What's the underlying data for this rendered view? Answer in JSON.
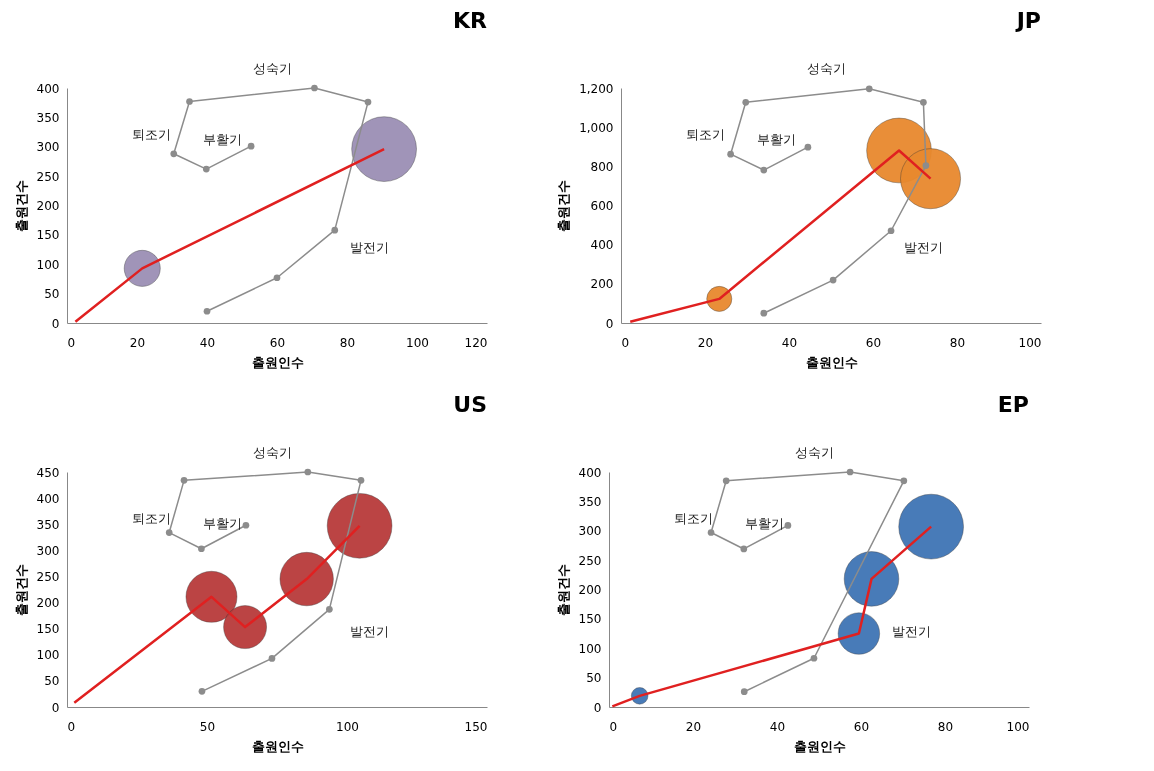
{
  "chart_data": [
    {
      "type": "bubble",
      "title": "KR",
      "xlabel": "출원인수",
      "ylabel": "출원건수",
      "xlim": [
        0,
        120
      ],
      "xticks": [
        0,
        20,
        40,
        60,
        80,
        100,
        120
      ],
      "ylim": [
        0,
        400
      ],
      "yticks": [
        0,
        50,
        100,
        150,
        200,
        250,
        300,
        350,
        400
      ],
      "grid": false,
      "legend": false,
      "series": [
        {
          "type": "bubble",
          "color": "#9b8fb5",
          "x": [
            21.5,
            90.6
          ],
          "values": [
            93,
            296
          ],
          "sizes": [
            0.31,
            1
          ]
        },
        {
          "type": "line",
          "color": "#8c8c8c",
          "marker": "circle",
          "x": [
            40,
            60,
            76.5,
            86,
            70.7,
            35,
            30.5,
            39.8,
            52.6
          ],
          "values": [
            20,
            77,
            158,
            376,
            400,
            377,
            288,
            262,
            301
          ]
        },
        {
          "type": "line",
          "color": "#e02020",
          "marker": "none",
          "x": [
            2.4,
            21.5,
            90.6
          ],
          "values": [
            2,
            93,
            296
          ]
        }
      ],
      "annotations": [
        "성숙기",
        "퇴조기",
        "부활기",
        "발전기"
      ]
    },
    {
      "type": "bubble",
      "title": "JP",
      "xlabel": "출원인수",
      "ylabel": "출원건수",
      "xlim": [
        0,
        100
      ],
      "xticks": [
        0,
        20,
        40,
        60,
        80,
        100
      ],
      "ylim": [
        0,
        1200
      ],
      "yticks": [
        0,
        200,
        400,
        600,
        800,
        {
          "value": 1000,
          "label": "1,000"
        },
        {
          "value": 1200,
          "label": "1,200"
        }
      ],
      "grid": false,
      "legend": false,
      "series": [
        {
          "type": "bubble",
          "color": "#e8892e",
          "x": [
            23.4,
            66.2,
            73.7
          ],
          "values": [
            123,
            881,
            737
          ],
          "sizes": [
            0.15,
            1,
            0.86
          ]
        },
        {
          "type": "line",
          "color": "#8c8c8c",
          "marker": "circle",
          "x": [
            34,
            50.5,
            64.3,
            72.6,
            72,
            59.1,
            29.7,
            26.1,
            34,
            44.5
          ],
          "values": [
            50,
            219,
            471,
            804,
            1127,
            1196,
            1127,
            862,
            781,
            898
          ]
        },
        {
          "type": "line",
          "color": "#e02020",
          "marker": "none",
          "x": [
            2.2,
            23.4,
            66.2,
            73.7
          ],
          "values": [
            6,
            123,
            881,
            737
          ]
        }
      ],
      "annotations": [
        "성숙기",
        "퇴조기",
        "부활기",
        "발전기"
      ]
    },
    {
      "type": "bubble",
      "title": "US",
      "xlabel": "출원인수",
      "ylabel": "출원건수",
      "xlim": [
        0,
        150
      ],
      "xticks": [
        0,
        50,
        100,
        150
      ],
      "ylim": [
        0,
        450
      ],
      "yticks": [
        0,
        50,
        100,
        150,
        200,
        250,
        300,
        350,
        400,
        450
      ],
      "grid": false,
      "legend": false,
      "series": [
        {
          "type": "bubble",
          "color": "#b83a3a",
          "x": [
            51.6,
            63.6,
            85.6,
            104.5
          ],
          "values": [
            211,
            153,
            245,
            347
          ],
          "sizes": [
            0.62,
            0.44,
            0.68,
            1
          ]
        },
        {
          "type": "line",
          "color": "#8c8c8c",
          "marker": "circle",
          "x": [
            48.2,
            73.2,
            93.7,
            105,
            86,
            41.8,
            36.5,
            48,
            63.9
          ],
          "values": [
            30,
            93,
            187,
            434,
            450,
            434,
            334,
            303,
            348
          ]
        },
        {
          "type": "line",
          "color": "#e02020",
          "marker": "none",
          "x": [
            2.6,
            51.6,
            63.6,
            85.6,
            104.5
          ],
          "values": [
            8,
            211,
            153,
            245,
            347
          ]
        }
      ],
      "annotations": [
        "성숙기",
        "퇴조기",
        "부활기",
        "발전기"
      ]
    },
    {
      "type": "bubble",
      "title": "EP",
      "xlabel": "출원인수",
      "ylabel": "출원건수",
      "xlim": [
        0,
        100
      ],
      "xticks": [
        0,
        20,
        40,
        60,
        80,
        100
      ],
      "ylim": [
        0,
        400
      ],
      "yticks": [
        0,
        50,
        100,
        150,
        200,
        250,
        300,
        350,
        400
      ],
      "grid": false,
      "legend": false,
      "series": [
        {
          "type": "bubble",
          "color": "#3f74b5",
          "x": [
            7.3,
            59.5,
            62.5,
            76.7
          ],
          "values": [
            19,
            125,
            218,
            307
          ],
          "sizes": [
            0.066,
            0.41,
            0.71,
            1
          ]
        },
        {
          "type": "line",
          "color": "#8c8c8c",
          "marker": "circle",
          "x": [
            32.2,
            48.8,
            70.2,
            57.4,
            27.9,
            24.3,
            32.1,
            42.6
          ],
          "values": [
            26,
            83,
            385,
            400,
            385,
            297,
            269,
            309
          ]
        },
        {
          "type": "line",
          "color": "#e02020",
          "marker": "none",
          "x": [
            0.8,
            7.3,
            59.5,
            62.5,
            76.7
          ],
          "values": [
            1,
            19,
            125,
            218,
            307
          ]
        }
      ],
      "annotations": [
        "성숙기",
        "퇴조기",
        "부활기",
        "발전기"
      ]
    }
  ]
}
